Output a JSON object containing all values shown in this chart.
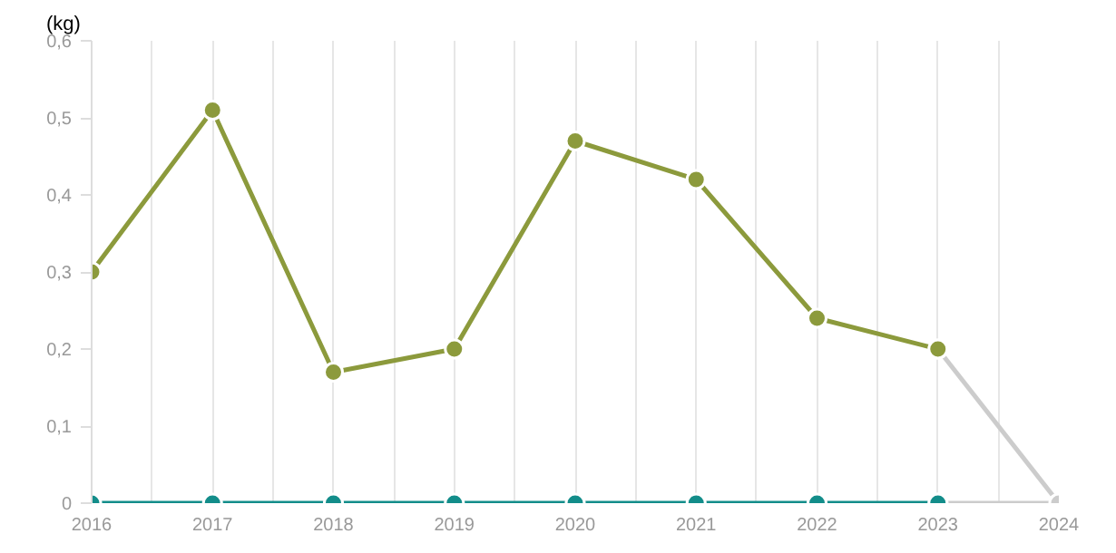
{
  "chart_data": {
    "type": "line",
    "ylabel": "(kg)",
    "x": [
      2016,
      2017,
      2018,
      2019,
      2020,
      2021,
      2022,
      2023,
      2024
    ],
    "series": [
      {
        "color": "#cccccc",
        "values": [
          null,
          null,
          null,
          null,
          null,
          null,
          null,
          0.2,
          0
        ]
      },
      {
        "color": "#cccccc",
        "values": [
          null,
          null,
          null,
          null,
          null,
          null,
          null,
          0,
          0
        ]
      },
      {
        "color": "#8c9a3c",
        "values": [
          0.3,
          0.51,
          0.17,
          0.2,
          0.47,
          0.42,
          0.24,
          0.2,
          null
        ]
      },
      {
        "color": "#138d8a",
        "values": [
          0,
          0,
          0,
          0,
          0,
          0,
          0,
          0,
          null
        ]
      }
    ],
    "xlim": [
      2016,
      2024
    ],
    "ylim": [
      0,
      0.6
    ],
    "xticks": [
      2016,
      {
        "value": 2016.5,
        "label": null
      },
      2017,
      {
        "value": 2017.5,
        "label": null
      },
      2018,
      {
        "value": 2018.5,
        "label": null
      },
      2019,
      {
        "value": 2019.5,
        "label": null
      },
      2020,
      {
        "value": 2020.5,
        "label": null
      },
      2021,
      {
        "value": 2021.5,
        "label": null
      },
      2022,
      {
        "value": 2022.5,
        "label": null
      },
      2023,
      {
        "value": 2023.5,
        "label": null
      },
      2024
    ],
    "yticks": [
      0,
      {
        "value": 0.1,
        "label": "0,1"
      },
      {
        "value": 0.2,
        "label": "0,2"
      },
      {
        "value": 0.3,
        "label": "0,3"
      },
      {
        "value": 0.4,
        "label": "0,4"
      },
      {
        "value": 0.5,
        "label": "0,5"
      },
      {
        "value": 0.6,
        "label": "0,6"
      }
    ],
    "grid": "x",
    "marker": "circle",
    "line_style": "solid"
  }
}
